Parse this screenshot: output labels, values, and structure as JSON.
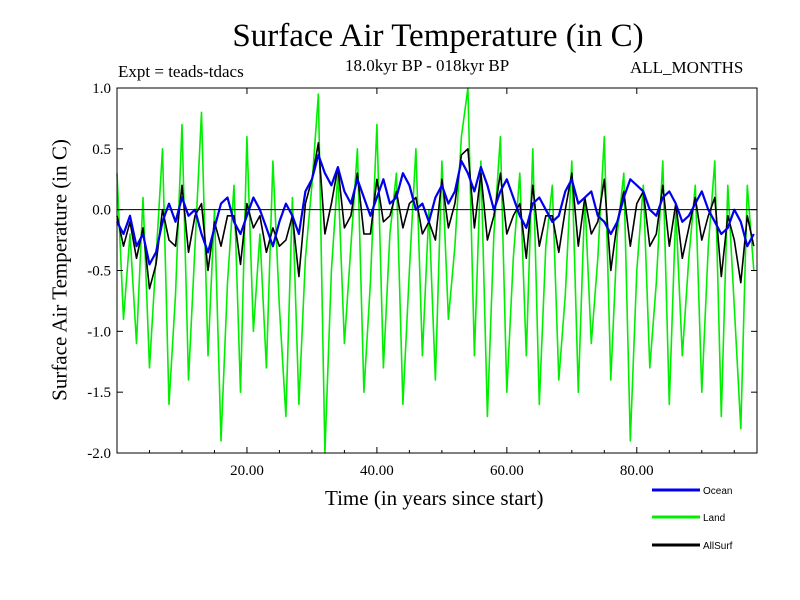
{
  "chart_data": {
    "type": "line",
    "title": "Surface Air Temperature (in C)",
    "subtitle": "18.0kyr BP - 018kyr BP",
    "experiment": "Expt = teads-tdacs",
    "period": "ALL_MONTHS",
    "xlabel": "Time (in years since start)",
    "ylabel": "Surface Air Temperature (in C)",
    "xlim": [
      0,
      98.5
    ],
    "ylim": [
      -2.0,
      1.0
    ],
    "xticks": [
      20,
      40,
      60,
      80
    ],
    "xtick_labels": [
      "20.00",
      "40.00",
      "60.00",
      "80.00"
    ],
    "yticks": [
      -2.0,
      -1.5,
      -1.0,
      -0.5,
      0.0,
      0.5,
      1.0
    ],
    "ytick_labels": [
      "-2.0",
      "-1.5",
      "-1.0",
      "-0.5",
      "0.0",
      "0.5",
      "1.0"
    ],
    "zero_line": 0.0,
    "series": [
      {
        "name": "Land",
        "color": "#00ee00",
        "x": [
          0,
          1,
          2,
          3,
          4,
          5,
          6,
          7,
          8,
          9,
          10,
          11,
          12,
          13,
          14,
          15,
          16,
          17,
          18,
          19,
          20,
          21,
          22,
          23,
          24,
          25,
          26,
          27,
          28,
          29,
          30,
          31,
          32,
          33,
          34,
          35,
          36,
          37,
          38,
          39,
          40,
          41,
          42,
          43,
          44,
          45,
          46,
          47,
          48,
          49,
          50,
          51,
          52,
          53,
          54,
          55,
          56,
          57,
          58,
          59,
          60,
          61,
          62,
          63,
          64,
          65,
          66,
          67,
          68,
          69,
          70,
          71,
          72,
          73,
          74,
          75,
          76,
          77,
          78,
          79,
          80,
          81,
          82,
          83,
          84,
          85,
          86,
          87,
          88,
          89,
          90,
          91,
          92,
          93,
          94,
          95,
          96,
          97,
          98
        ],
        "y": [
          0.3,
          -0.9,
          -0.2,
          -1.1,
          0.1,
          -1.3,
          -0.4,
          0.5,
          -1.6,
          -0.7,
          0.7,
          -1.4,
          -0.3,
          0.8,
          -1.2,
          0.0,
          -1.9,
          -0.6,
          0.2,
          -1.5,
          0.6,
          -1.0,
          -0.2,
          -1.3,
          0.4,
          -0.8,
          -1.7,
          0.1,
          -1.6,
          -0.4,
          0.2,
          0.95,
          -2.0,
          -0.5,
          0.3,
          -1.1,
          -0.3,
          0.5,
          -1.5,
          -0.6,
          0.7,
          -1.3,
          -0.2,
          0.3,
          -1.6,
          -0.5,
          0.5,
          -1.2,
          0.0,
          -1.4,
          0.4,
          -0.9,
          -0.3,
          0.6,
          1.0,
          -1.2,
          0.4,
          -1.7,
          -0.2,
          0.6,
          -1.5,
          -0.4,
          0.3,
          -1.2,
          0.5,
          -1.6,
          -0.3,
          0.2,
          -1.4,
          -0.7,
          0.4,
          -1.5,
          0.1,
          -1.1,
          -0.4,
          0.6,
          -1.4,
          -0.2,
          0.3,
          -1.9,
          -0.5,
          0.2,
          -1.3,
          -0.6,
          0.4,
          -1.6,
          0.0,
          -1.2,
          -0.4,
          0.2,
          -1.5,
          -0.3,
          0.4,
          -1.7,
          0.2,
          -0.8,
          -1.8,
          0.2,
          -0.5
        ]
      },
      {
        "name": "Ocean",
        "color": "#0000ee",
        "x": [
          0,
          1,
          2,
          3,
          4,
          5,
          6,
          7,
          8,
          9,
          10,
          11,
          12,
          13,
          14,
          15,
          16,
          17,
          18,
          19,
          20,
          21,
          22,
          23,
          24,
          25,
          26,
          27,
          28,
          29,
          30,
          31,
          32,
          33,
          34,
          35,
          36,
          37,
          38,
          39,
          40,
          41,
          42,
          43,
          44,
          45,
          46,
          47,
          48,
          49,
          50,
          51,
          52,
          53,
          54,
          55,
          56,
          57,
          58,
          59,
          60,
          61,
          62,
          63,
          64,
          65,
          66,
          67,
          68,
          69,
          70,
          71,
          72,
          73,
          74,
          75,
          76,
          77,
          78,
          79,
          80,
          81,
          82,
          83,
          84,
          85,
          86,
          87,
          88,
          89,
          90,
          91,
          92,
          93,
          94,
          95,
          96,
          97,
          98
        ],
        "y": [
          -0.1,
          -0.2,
          -0.05,
          -0.3,
          -0.2,
          -0.45,
          -0.35,
          -0.1,
          0.05,
          -0.1,
          0.1,
          -0.05,
          0.0,
          -0.2,
          -0.35,
          -0.15,
          0.05,
          0.1,
          -0.1,
          -0.2,
          -0.05,
          0.1,
          0.0,
          -0.15,
          -0.3,
          -0.1,
          0.05,
          -0.05,
          -0.2,
          0.15,
          0.25,
          0.45,
          0.3,
          0.2,
          0.35,
          0.15,
          0.05,
          0.25,
          0.1,
          -0.05,
          0.1,
          0.25,
          0.05,
          0.1,
          0.3,
          0.2,
          0.0,
          0.05,
          -0.1,
          0.1,
          0.2,
          0.05,
          0.15,
          0.4,
          0.3,
          0.15,
          0.35,
          0.2,
          0.0,
          0.15,
          0.25,
          0.1,
          -0.05,
          -0.15,
          0.05,
          0.1,
          0.0,
          -0.1,
          -0.05,
          0.15,
          0.25,
          0.05,
          0.1,
          0.15,
          -0.05,
          -0.1,
          -0.2,
          -0.1,
          0.1,
          0.25,
          0.2,
          0.15,
          0.0,
          -0.05,
          0.1,
          0.15,
          0.05,
          -0.1,
          -0.05,
          0.05,
          0.15,
          0.0,
          -0.1,
          -0.2,
          -0.15,
          0.0,
          -0.1,
          -0.3,
          -0.2
        ]
      },
      {
        "name": "AllSurf",
        "color": "#000000",
        "x": [
          0,
          1,
          2,
          3,
          4,
          5,
          6,
          7,
          8,
          9,
          10,
          11,
          12,
          13,
          14,
          15,
          16,
          17,
          18,
          19,
          20,
          21,
          22,
          23,
          24,
          25,
          26,
          27,
          28,
          29,
          30,
          31,
          32,
          33,
          34,
          35,
          36,
          37,
          38,
          39,
          40,
          41,
          42,
          43,
          44,
          45,
          46,
          47,
          48,
          49,
          50,
          51,
          52,
          53,
          54,
          55,
          56,
          57,
          58,
          59,
          60,
          61,
          62,
          63,
          64,
          65,
          66,
          67,
          68,
          69,
          70,
          71,
          72,
          73,
          74,
          75,
          76,
          77,
          78,
          79,
          80,
          81,
          82,
          83,
          84,
          85,
          86,
          87,
          88,
          89,
          90,
          91,
          92,
          93,
          94,
          95,
          96,
          97,
          98
        ],
        "y": [
          -0.05,
          -0.3,
          -0.1,
          -0.4,
          -0.15,
          -0.65,
          -0.45,
          0.0,
          -0.25,
          -0.3,
          0.2,
          -0.35,
          -0.05,
          0.05,
          -0.5,
          -0.1,
          -0.3,
          -0.05,
          -0.05,
          -0.45,
          0.05,
          -0.15,
          -0.05,
          -0.35,
          -0.15,
          -0.3,
          -0.25,
          -0.05,
          -0.55,
          0.05,
          0.25,
          0.55,
          -0.2,
          0.05,
          0.35,
          -0.15,
          -0.05,
          0.3,
          -0.2,
          -0.2,
          0.25,
          -0.1,
          -0.05,
          0.15,
          -0.15,
          0.05,
          0.1,
          -0.2,
          -0.1,
          -0.25,
          0.25,
          -0.15,
          0.05,
          0.45,
          0.5,
          -0.15,
          0.3,
          -0.25,
          -0.05,
          0.3,
          -0.2,
          -0.05,
          0.05,
          -0.4,
          0.2,
          -0.3,
          -0.05,
          -0.05,
          -0.35,
          0.0,
          0.3,
          -0.3,
          0.1,
          -0.2,
          -0.1,
          0.25,
          -0.5,
          -0.1,
          0.15,
          -0.3,
          0.05,
          0.15,
          -0.3,
          -0.2,
          0.2,
          -0.3,
          0.05,
          -0.4,
          -0.15,
          0.1,
          -0.25,
          -0.05,
          0.1,
          -0.55,
          -0.05,
          -0.25,
          -0.6,
          -0.05,
          -0.3
        ]
      }
    ],
    "legend": [
      "Ocean",
      "Land",
      "AllSurf"
    ]
  }
}
